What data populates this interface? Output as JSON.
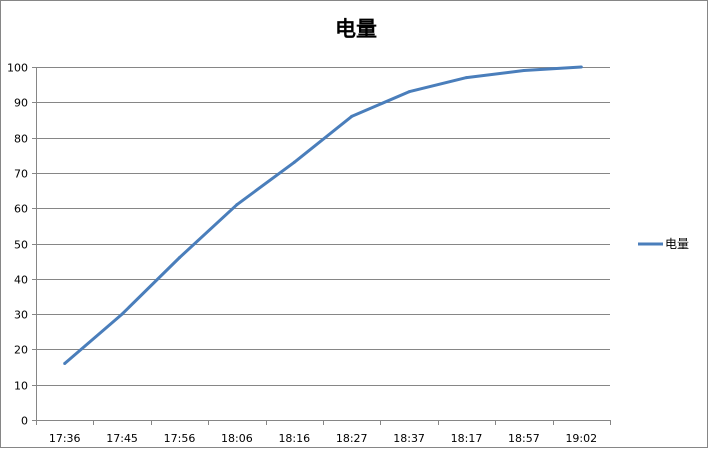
{
  "chart_data": {
    "type": "line",
    "title": "电量",
    "categories": [
      "17:36",
      "17:45",
      "17:56",
      "18:06",
      "18:16",
      "18:27",
      "18:37",
      "18:17",
      "18:57",
      "19:02"
    ],
    "series": [
      {
        "name": "电量",
        "values": [
          16,
          30,
          46,
          61,
          73,
          86,
          93,
          97,
          99,
          100
        ],
        "color": "#4A7EBB"
      }
    ],
    "ylim": [
      0,
      100
    ],
    "yticks": [
      0,
      10,
      20,
      30,
      40,
      50,
      60,
      70,
      80,
      90,
      100
    ],
    "grid": true,
    "legend": "right"
  }
}
